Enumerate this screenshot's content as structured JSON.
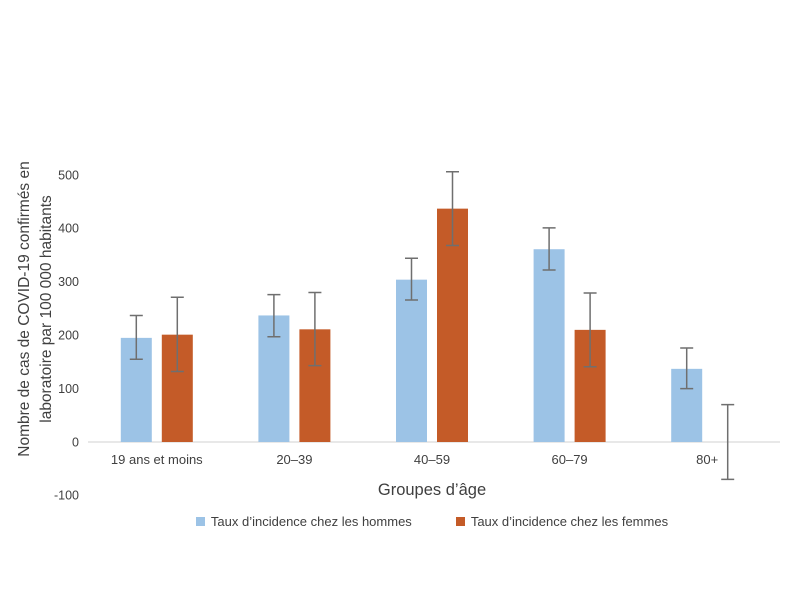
{
  "chart_data": {
    "type": "bar",
    "title": "",
    "xlabel": "Groupes d’âge",
    "ylabel": "Nombre de cas de COVID-19 confirmés en laboratoire par 100 000 habitants",
    "ylabel_lines": [
      "Nombre de cas de COVID-19 confirmés en",
      "laboratoire par 100 000 habitants"
    ],
    "categories": [
      "19 ans et moins",
      "20–39",
      "40–59",
      "60–79",
      "80+"
    ],
    "y_ticks": [
      500,
      400,
      300,
      200,
      100,
      0,
      -100
    ],
    "ylim": [
      -100,
      500
    ],
    "grid": false,
    "legend_position": "bottom",
    "series": [
      {
        "name": "Taux d’incidence chez les hommes",
        "color": "#9CC3E6",
        "values": [
          195,
          237,
          304,
          361,
          137
        ],
        "error_low": [
          155,
          197,
          266,
          322,
          100
        ],
        "error_high": [
          237,
          276,
          344,
          401,
          176
        ]
      },
      {
        "name": "Taux d’incidence chez les femmes",
        "color": "#C45B28",
        "values": [
          201,
          211,
          437,
          210,
          0
        ],
        "error_low": [
          132,
          143,
          368,
          141,
          -70
        ],
        "error_high": [
          271,
          280,
          506,
          279,
          70
        ]
      }
    ],
    "error_bar_color": "#6F6F6F",
    "axis_line_color": "#D9D9D9",
    "text_color": "#404040"
  }
}
